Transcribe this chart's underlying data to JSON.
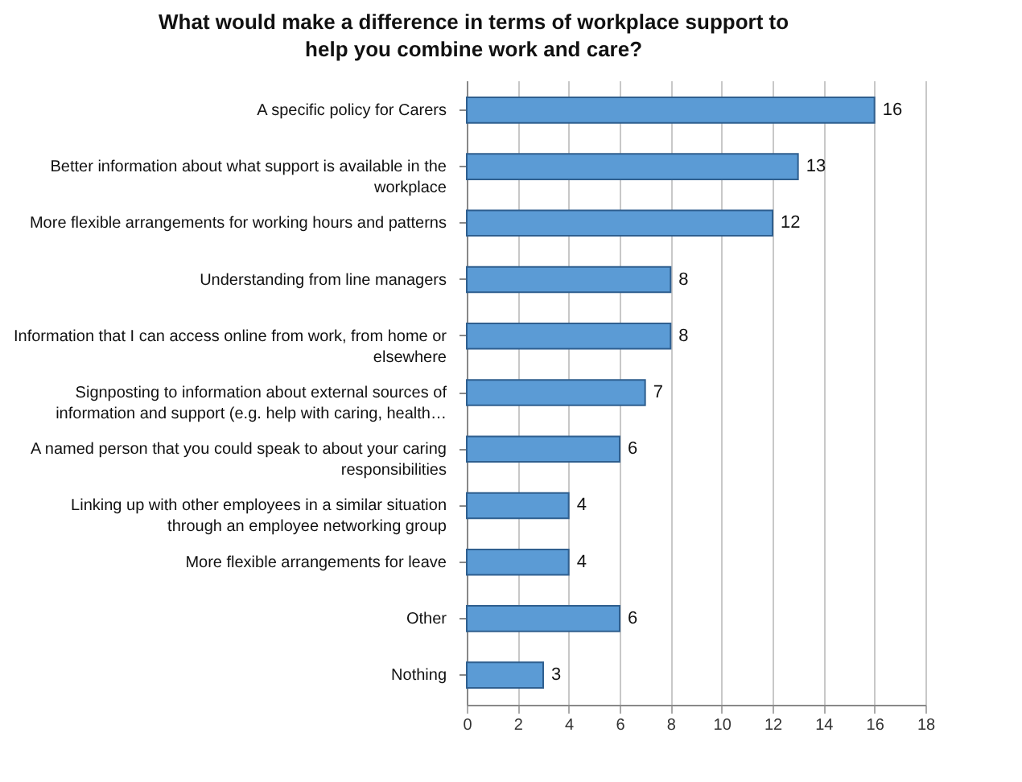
{
  "chart_data": {
    "type": "bar",
    "orientation": "horizontal",
    "title": "What would make a difference in terms of workplace support to help you combine work and care?",
    "categories": [
      "A specific policy for Carers",
      "Better information about what support is available in the workplace",
      "More flexible arrangements for working hours and patterns",
      "Understanding from line managers",
      "Information that I can access online from work, from home or elsewhere",
      "Signposting to information about external sources of information and support (e.g. help with caring, health…",
      "A named person that you could speak to about your caring responsibilities",
      "Linking up with other employees in a similar situation through an employee networking group",
      "More flexible arrangements for leave",
      "Other",
      "Nothing"
    ],
    "values": [
      16,
      13,
      12,
      8,
      8,
      7,
      6,
      4,
      4,
      6,
      3
    ],
    "color": "#5b9bd5",
    "xlim": [
      0,
      18
    ],
    "xticks": [
      0,
      2,
      4,
      6,
      8,
      10,
      12,
      14,
      16,
      18
    ],
    "grid": "x",
    "data_labels": true
  }
}
